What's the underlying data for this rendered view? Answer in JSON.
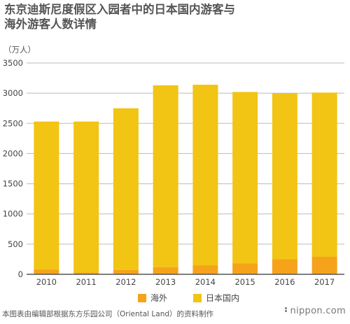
{
  "title_lines": [
    "东京迪斯尼度假区入园者中的日本国内游客与",
    "海外游客人数详情"
  ],
  "unit": "（万人）",
  "footer": "本图表由编辑部根据东方乐园公司（Oriental Land）的资料制作",
  "logo": "nippon.com",
  "colors": {
    "overseas": "#f5a31a",
    "domestic": "#f2c414",
    "grid": "#bbbbbb",
    "axis": "#555555"
  },
  "chart_data": {
    "type": "bar",
    "stacked": true,
    "categories": [
      "2010",
      "2011",
      "2012",
      "2013",
      "2014",
      "2015",
      "2016",
      "2017"
    ],
    "series": [
      {
        "name": "海外",
        "values": [
          80,
          30,
          70,
          120,
          150,
          180,
          250,
          290
        ]
      },
      {
        "name": "日本国内",
        "values": [
          2450,
          2500,
          2680,
          3010,
          2990,
          2840,
          2750,
          2720
        ]
      }
    ],
    "ylim": [
      0,
      3500
    ],
    "yticks": [
      0,
      500,
      1000,
      1500,
      2000,
      2500,
      3000,
      3500
    ],
    "grid": true,
    "legend": "bottom"
  }
}
